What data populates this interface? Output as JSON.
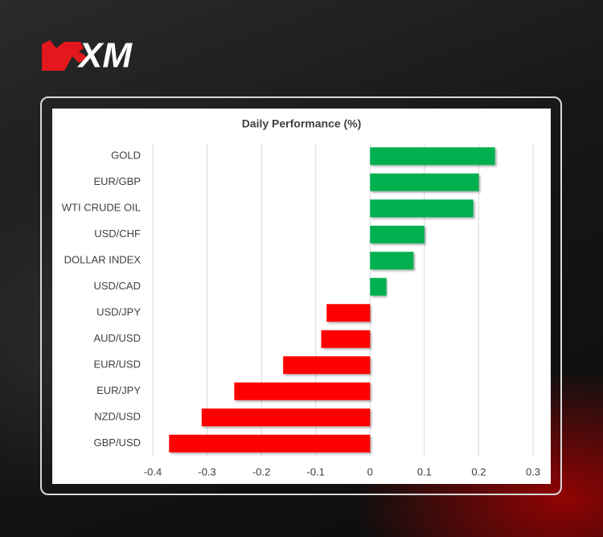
{
  "logo": "XM",
  "chart_data": {
    "type": "hbar",
    "title": "Daily Performance (%)",
    "categories": [
      "GOLD",
      "EUR/GBP",
      "WTI CRUDE OIL",
      "USD/CHF",
      "DOLLAR INDEX",
      "USD/CAD",
      "USD/JPY",
      "AUD/USD",
      "EUR/USD",
      "EUR/JPY",
      "NZD/USD",
      "GBP/USD"
    ],
    "values": [
      0.23,
      0.2,
      0.19,
      0.1,
      0.08,
      0.03,
      -0.08,
      -0.09,
      -0.16,
      -0.25,
      -0.31,
      -0.37
    ],
    "color_positive": "#00b050",
    "color_negative": "#ff0000",
    "xlim": [
      -0.4,
      0.3
    ],
    "xticks": [
      -0.4,
      -0.3,
      -0.2,
      -0.1,
      0,
      0.1,
      0.2,
      0.3
    ],
    "grid": true
  }
}
